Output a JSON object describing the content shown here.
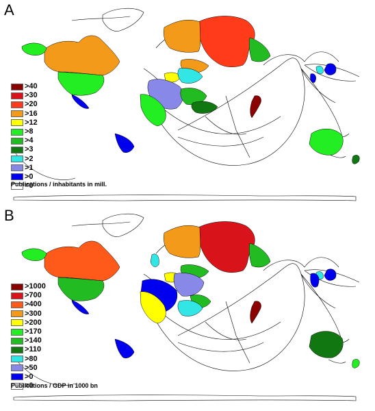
{
  "panels": [
    {
      "letter": "A",
      "caption": "Publications / inhabitants in mill.",
      "legend": [
        {
          "label": ">40",
          "color": "#8b0000"
        },
        {
          "label": ">30",
          "color": "#d8141a"
        },
        {
          "label": ">20",
          "color": "#ff3b1a"
        },
        {
          "label": ">16",
          "color": "#f49a1a"
        },
        {
          "label": ">12",
          "color": "#ffff00"
        },
        {
          "label": ">8",
          "color": "#22ee22"
        },
        {
          "label": ">4",
          "color": "#22bb22"
        },
        {
          "label": ">3",
          "color": "#117711"
        },
        {
          "label": ">2",
          "color": "#33e6e6"
        },
        {
          "label": ">1",
          "color": "#8888e8"
        },
        {
          "label": ">0",
          "color": "#0000ee"
        },
        {
          "label": "=0",
          "color": "#ffffff"
        }
      ]
    },
    {
      "letter": "B",
      "caption": "Publications / GDP in 1000 bn",
      "legend": [
        {
          "label": ">1000",
          "color": "#8b0000"
        },
        {
          "label": ">700",
          "color": "#d8141a"
        },
        {
          "label": ">400",
          "color": "#ff5a1a"
        },
        {
          "label": ">300",
          "color": "#f49a1a"
        },
        {
          "label": ">200",
          "color": "#ffff00"
        },
        {
          "label": ">170",
          "color": "#22ee22"
        },
        {
          "label": ">140",
          "color": "#22bb22"
        },
        {
          "label": ">110",
          "color": "#117711"
        },
        {
          "label": ">80",
          "color": "#33e6e6"
        },
        {
          "label": ">50",
          "color": "#8888e8"
        },
        {
          "label": ">0",
          "color": "#0000ee"
        },
        {
          "label": "=0",
          "color": "#ffffff"
        }
      ]
    }
  ],
  "regions": {
    "A": {
      "north-america-canada": "#f49a1a",
      "north-america-usa": "#22ee22",
      "alaska": "#22ee22",
      "mexico-central-america": "#0000ee",
      "south-america": "#0000ee",
      "russia": "#ff3b1a",
      "scandinavia": "#f49a1a",
      "europe-north": "#f49a1a",
      "europe-central": "#ffff00",
      "europe-west": "#33e6e6",
      "europe-south": "#8888e8",
      "middle-east": "#22bb22",
      "africa-north": "#22ee22",
      "arabia": "#117711",
      "india": "#8b0000",
      "east-asia-islands": "#33e6e6",
      "japan": "#0000ee",
      "china-east": "#22bb22",
      "australia": "#22ee22",
      "new-zealand": "#117711"
    },
    "B": {
      "north-america-canada": "#ff5a1a",
      "north-america-usa": "#22bb22",
      "alaska": "#22ee22",
      "mexico-central-america": "#0000ee",
      "south-america": "#0000ee",
      "russia": "#d8141a",
      "scandinavia": "#f49a1a",
      "europe-north": "#22bb22",
      "europe-central": "#ffff00",
      "europe-west": "#0000ee",
      "europe-south": "#8888e8",
      "middle-east": "#22bb22",
      "africa-north": "#ffff00",
      "arabia": "#33e6e6",
      "india": "#8b0000",
      "east-asia-islands": "#33e6e6",
      "japan": "#0000ee",
      "china-east": "#22bb22",
      "australia": "#117711",
      "new-zealand": "#22ee22"
    }
  }
}
